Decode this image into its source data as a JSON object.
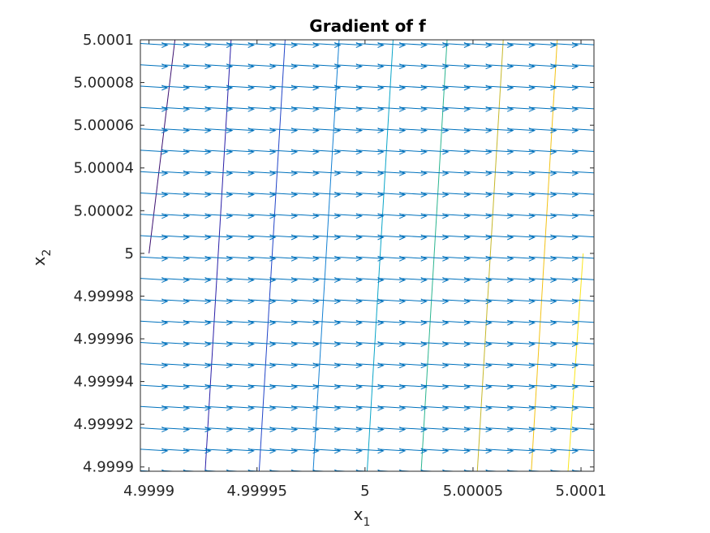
{
  "chart_data": {
    "type": "quiver+contour",
    "title": "Gradient of f",
    "xlabel": {
      "base": "x",
      "sub": "1"
    },
    "ylabel": {
      "base": "x",
      "sub": "2"
    },
    "xlim": [
      4.999896,
      5.000106
    ],
    "ylim": [
      4.999898,
      5.0001
    ],
    "xticks": [
      {
        "v": 4.9999,
        "label": "4.9999"
      },
      {
        "v": 4.99995,
        "label": "4.99995"
      },
      {
        "v": 5.0,
        "label": "5"
      },
      {
        "v": 5.00005,
        "label": "5.00005"
      },
      {
        "v": 5.0001,
        "label": "5.0001"
      }
    ],
    "yticks": [
      {
        "v": 4.9999,
        "label": "4.9999"
      },
      {
        "v": 4.99992,
        "label": "4.99992"
      },
      {
        "v": 4.99994,
        "label": "4.99994"
      },
      {
        "v": 4.99996,
        "label": "4.99996"
      },
      {
        "v": 4.99998,
        "label": "4.99998"
      },
      {
        "v": 5.0,
        "label": "5"
      },
      {
        "v": 5.00002,
        "label": "5.00002"
      },
      {
        "v": 5.00004,
        "label": "5.00004"
      },
      {
        "v": 5.00006,
        "label": "5.00006"
      },
      {
        "v": 5.00008,
        "label": "5.00008"
      },
      {
        "v": 5.0001,
        "label": "5.0001"
      }
    ],
    "quiver": {
      "x_start": 4.999896,
      "x_step": 1e-05,
      "x_count": 22,
      "y_start": 4.999898,
      "y_step": 1e-05,
      "y_count": 21,
      "direction": "positive x",
      "color": "#0072BD"
    },
    "contours": [
      {
        "x_bottom": 4.9999,
        "x_top": 4.999912,
        "y_bottom": 5.0,
        "color": "#3b0f70"
      },
      {
        "x_bottom": 4.999926,
        "x_top": 4.999938,
        "y_bottom": 4.999898,
        "color": "#2a1fa8"
      },
      {
        "x_bottom": 4.999951,
        "x_top": 4.999963,
        "y_bottom": 4.999898,
        "color": "#2245c8"
      },
      {
        "x_bottom": 4.999976,
        "x_top": 4.999988,
        "y_bottom": 4.999898,
        "color": "#1480d2"
      },
      {
        "x_bottom": 5.000001,
        "x_top": 5.000013,
        "y_bottom": 4.999898,
        "color": "#0aa5c8"
      },
      {
        "x_bottom": 5.000026,
        "x_top": 5.000038,
        "y_bottom": 4.999898,
        "color": "#2bb58f"
      },
      {
        "x_bottom": 5.000052,
        "x_top": 5.000064,
        "y_bottom": 4.999898,
        "color": "#c5b72a"
      },
      {
        "x_bottom": 5.000077,
        "x_top": 5.000089,
        "y_bottom": 4.999898,
        "color": "#f3c216"
      },
      {
        "x_bottom": 5.000094,
        "x_top": 5.000101,
        "y_bottom": 4.999898,
        "y_top": 5.0,
        "color": "#f9e51b"
      }
    ],
    "grid": false
  }
}
